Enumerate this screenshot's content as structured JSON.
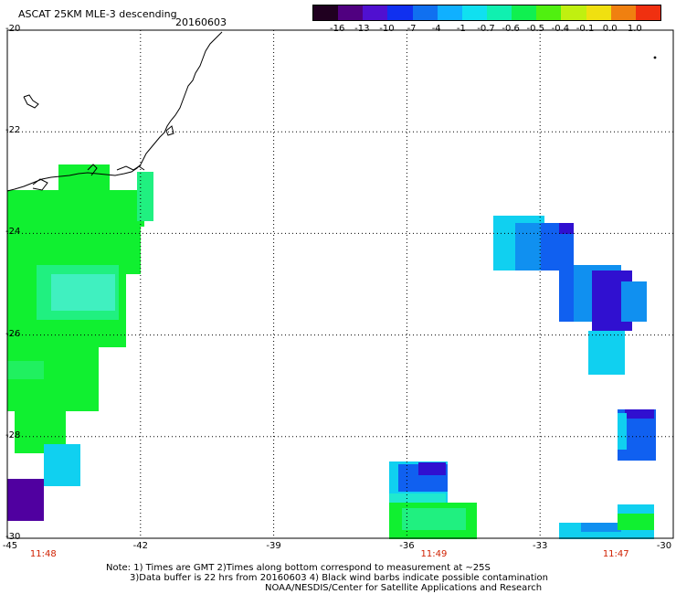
{
  "title": "ASCAT 25KM MLE-3 descending",
  "date": "20160603",
  "colorbar": {
    "labels": [
      "-16",
      "-13",
      "-10",
      "-7",
      "-4",
      "-1",
      "-0.7",
      "-0.6",
      "-0.5",
      "-0.4",
      "-0.1",
      "0.0",
      "1.0"
    ],
    "colors": [
      "#200020",
      "#500080",
      "#5010d0",
      "#1030f0",
      "#1070f0",
      "#10b0ff",
      "#10e0f0",
      "#10f0b0",
      "#10f050",
      "#50f010",
      "#c0f010",
      "#f0e010",
      "#f08010",
      "#f03010"
    ]
  },
  "axes": {
    "lon_labels": [
      "-45",
      "-42",
      "-39",
      "-36",
      "-33",
      "-30"
    ],
    "lat_labels": [
      "-20",
      "-22",
      "-24",
      "-26",
      "-28",
      "-30"
    ],
    "lon_range": [
      -45,
      -30
    ],
    "lat_range": [
      -30,
      -20
    ]
  },
  "times": [
    {
      "label": "11:48",
      "lon": -44.2
    },
    {
      "label": "11:49",
      "lon": -35.4
    },
    {
      "label": "11:47",
      "lon": -31.3
    }
  ],
  "notes": {
    "line1": "Note: 1) Times are GMT 2)Times along bottom correspond to measurement at ~25S",
    "line2": "3)Data buffer is 22 hrs from 20160603 4) Black wind barbs indicate possible contamination",
    "line3": "NOAA/NESDIS/Center for Satellite Applications and Research"
  },
  "colors": {
    "green": "#10f030",
    "green_light": "#20f080",
    "cyan": "#10d0f0",
    "cyan_light": "#20e8d0",
    "blue": "#1060f0",
    "blue_mid": "#1090f0",
    "indigo": "#3010d0",
    "violet": "#5000a0"
  }
}
